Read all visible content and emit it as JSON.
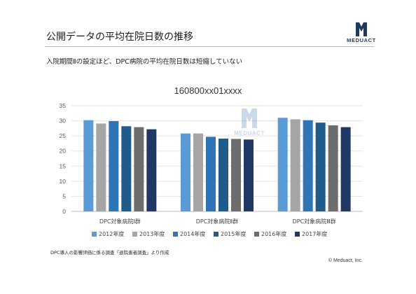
{
  "header": {
    "title": "公開データの平均在院日数の推移",
    "subtitle": "入院期間Ⅱの設定ほど、DPC病院の平均在院日数は短縮していない",
    "logo_text": "MEDUACT"
  },
  "watermark": {
    "text": "MEDUACT"
  },
  "footer": {
    "source": "DPC導入の影響評価に係る調査「退院患者調査」より作成",
    "copyright": "© Meduact, Inc."
  },
  "chart_data": {
    "type": "bar",
    "title": "160800xx01xxxx",
    "xlabel": "",
    "ylabel": "",
    "categories": [
      "DPC対象病院Ⅰ群",
      "DPC対象病院Ⅱ群",
      "DPC対象病院Ⅲ群"
    ],
    "ylim": [
      0,
      35
    ],
    "yticks": [
      "0",
      "5",
      "10",
      "15",
      "20",
      "25",
      "30",
      "35"
    ],
    "grid": true,
    "legend_position": "bottom",
    "series": [
      {
        "name": "2012年度",
        "color": "#5b9bd5",
        "values": [
          30.2,
          25.8,
          31.0
        ]
      },
      {
        "name": "2013年度",
        "color": "#a5a5a5",
        "values": [
          29.1,
          25.8,
          30.5
        ]
      },
      {
        "name": "2014年度",
        "color": "#2e75b6",
        "values": [
          29.9,
          24.7,
          30.2
        ]
      },
      {
        "name": "2015年度",
        "color": "#1f5c8b",
        "values": [
          28.2,
          24.1,
          29.4
        ]
      },
      {
        "name": "2016年度",
        "color": "#6d6d6d",
        "values": [
          27.9,
          24.0,
          28.5
        ]
      },
      {
        "name": "2017年度",
        "color": "#203864",
        "values": [
          27.2,
          23.8,
          27.9
        ]
      }
    ]
  }
}
